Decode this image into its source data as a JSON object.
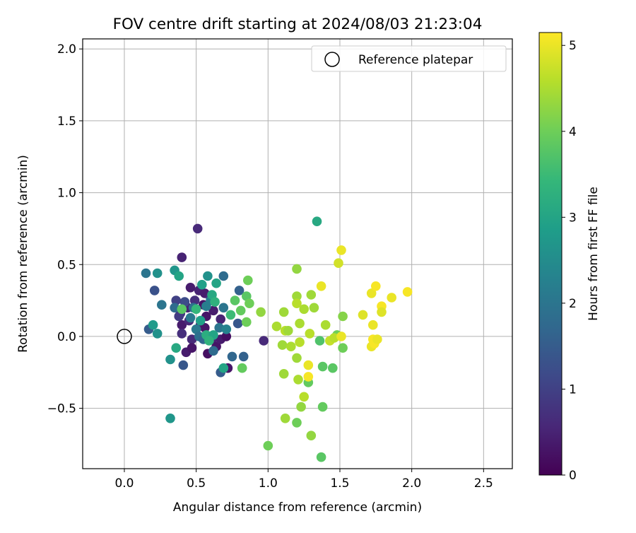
{
  "chart_data": {
    "type": "scatter",
    "title": "FOV centre drift starting at 2024/08/03 21:23:04",
    "xlabel": "Angular distance from reference (arcmin)",
    "ylabel": "Rotation from reference (arcmin)",
    "xlim": [
      -0.29,
      2.7
    ],
    "ylim": [
      -0.92,
      2.07
    ],
    "xticks": [
      0.0,
      0.5,
      1.0,
      1.5,
      2.0,
      2.5
    ],
    "xtick_labels": [
      "0.0",
      "0.5",
      "1.0",
      "1.5",
      "2.0",
      "2.5"
    ],
    "yticks": [
      -0.5,
      0.0,
      0.5,
      1.0,
      1.5,
      2.0
    ],
    "ytick_labels": [
      "−0.5",
      "0.0",
      "0.5",
      "1.0",
      "1.5",
      "2.0"
    ],
    "grid": true,
    "legend": {
      "placement": "top-right",
      "entries": [
        {
          "label": "Reference platepar",
          "marker": "open-circle"
        }
      ]
    },
    "reference_point": {
      "x": 0.0,
      "y": 0.0
    },
    "colorbar": {
      "label": "Hours from first FF file",
      "colormap": "viridis",
      "range": [
        0,
        5.15
      ],
      "ticks": [
        0,
        1,
        2,
        3,
        4,
        5
      ],
      "tick_labels": [
        "0",
        "1",
        "2",
        "3",
        "4",
        "5"
      ]
    },
    "colormap_stops": [
      "#440154",
      "#482878",
      "#3e4989",
      "#31688e",
      "#26828e",
      "#1f9e89",
      "#35b779",
      "#6ece58",
      "#b5de2b",
      "#fde725"
    ],
    "points": [
      [
        0.51,
        0.75,
        0.6
      ],
      [
        0.4,
        0.55,
        0.5
      ],
      [
        0.46,
        0.34,
        0.4
      ],
      [
        0.52,
        0.32,
        0.5
      ],
      [
        0.56,
        0.3,
        0.4
      ],
      [
        0.6,
        0.27,
        0.6
      ],
      [
        0.44,
        0.2,
        0.5
      ],
      [
        0.49,
        0.25,
        0.7
      ],
      [
        0.55,
        0.22,
        0.3
      ],
      [
        0.57,
        0.14,
        0.3
      ],
      [
        0.4,
        0.08,
        0.4
      ],
      [
        0.45,
        0.11,
        0.6
      ],
      [
        0.39,
        0.16,
        0.8
      ],
      [
        0.53,
        0.08,
        0.5
      ],
      [
        0.56,
        0.06,
        0.3
      ],
      [
        0.47,
        -0.02,
        0.6
      ],
      [
        0.61,
        -0.02,
        0.5
      ],
      [
        0.43,
        -0.11,
        0.4
      ],
      [
        0.47,
        -0.08,
        0.3
      ],
      [
        0.58,
        -0.12,
        0.2
      ],
      [
        0.64,
        -0.07,
        0.3
      ],
      [
        0.67,
        -0.02,
        0.4
      ],
      [
        0.71,
        0.0,
        0.2
      ],
      [
        0.72,
        -0.22,
        0.3
      ],
      [
        0.97,
        -0.03,
        0.6
      ],
      [
        0.4,
        0.02,
        0.7
      ],
      [
        0.62,
        0.18,
        0.4
      ],
      [
        0.67,
        0.12,
        0.5
      ],
      [
        0.42,
        0.24,
        1.2
      ],
      [
        0.36,
        0.25,
        1.0
      ],
      [
        0.38,
        0.14,
        0.9
      ],
      [
        0.17,
        0.05,
        1.5
      ],
      [
        0.21,
        0.32,
        1.3
      ],
      [
        0.41,
        -0.2,
        1.4
      ],
      [
        0.67,
        -0.25,
        1.5
      ],
      [
        0.75,
        -0.14,
        1.7
      ],
      [
        0.83,
        -0.14,
        1.6
      ],
      [
        0.79,
        0.09,
        1.4
      ],
      [
        0.8,
        0.32,
        1.6
      ],
      [
        0.69,
        0.42,
        1.8
      ],
      [
        0.15,
        0.44,
        2.0
      ],
      [
        0.26,
        0.22,
        2.0
      ],
      [
        0.35,
        0.2,
        1.8
      ],
      [
        0.48,
        0.2,
        1.9
      ],
      [
        0.5,
        0.05,
        2.1
      ],
      [
        0.52,
        0.0,
        1.9
      ],
      [
        0.55,
        -0.02,
        1.7
      ],
      [
        0.62,
        -0.1,
        1.8
      ],
      [
        0.66,
        0.06,
        2.0
      ],
      [
        0.71,
        0.05,
        2.3
      ],
      [
        0.6,
        0.25,
        2.2
      ],
      [
        0.69,
        0.2,
        2.0
      ],
      [
        0.46,
        0.13,
        2.1
      ],
      [
        0.57,
        0.21,
        2.2
      ],
      [
        0.23,
        0.44,
        2.6
      ],
      [
        0.35,
        0.46,
        2.7
      ],
      [
        0.38,
        0.42,
        3.0
      ],
      [
        0.2,
        0.08,
        2.8
      ],
      [
        0.23,
        0.02,
        2.6
      ],
      [
        0.32,
        -0.16,
        2.6
      ],
      [
        0.36,
        -0.08,
        3.1
      ],
      [
        0.32,
        -0.57,
        2.7
      ],
      [
        0.58,
        0.42,
        2.6
      ],
      [
        0.54,
        0.36,
        2.9
      ],
      [
        0.64,
        0.37,
        3.0
      ],
      [
        0.61,
        0.29,
        3.1
      ],
      [
        0.63,
        0.24,
        3.3
      ],
      [
        0.53,
        0.11,
        2.9
      ],
      [
        0.57,
        0.01,
        3.2
      ],
      [
        0.62,
        0.01,
        3.0
      ],
      [
        0.59,
        -0.03,
        3.3
      ],
      [
        0.69,
        -0.22,
        3.0
      ],
      [
        0.74,
        0.15,
        3.5
      ],
      [
        0.5,
        0.19,
        3.4
      ],
      [
        1.34,
        0.8,
        3.1
      ],
      [
        0.4,
        0.19,
        3.8
      ],
      [
        0.77,
        0.25,
        3.8
      ],
      [
        0.81,
        0.18,
        3.9
      ],
      [
        0.85,
        0.28,
        3.8
      ],
      [
        0.87,
        0.23,
        4.0
      ],
      [
        0.86,
        0.39,
        4.0
      ],
      [
        0.85,
        0.1,
        4.0
      ],
      [
        0.82,
        -0.22,
        3.9
      ],
      [
        1.0,
        -0.76,
        4.0
      ],
      [
        1.2,
        -0.6,
        4.0
      ],
      [
        1.36,
        -0.03,
        3.7
      ],
      [
        1.38,
        -0.21,
        3.8
      ],
      [
        1.45,
        -0.22,
        3.8
      ],
      [
        1.38,
        -0.49,
        3.9
      ],
      [
        1.37,
        -0.84,
        3.8
      ],
      [
        1.28,
        -0.32,
        3.9
      ],
      [
        1.52,
        -0.08,
        4.0
      ],
      [
        1.52,
        0.14,
        4.2
      ],
      [
        1.48,
        0.01,
        4.0
      ],
      [
        1.3,
        -0.69,
        4.3
      ],
      [
        0.95,
        0.17,
        4.3
      ],
      [
        1.2,
        0.47,
        4.3
      ],
      [
        1.2,
        0.28,
        4.4
      ],
      [
        1.3,
        0.29,
        4.4
      ],
      [
        1.25,
        0.19,
        4.5
      ],
      [
        1.32,
        0.2,
        4.4
      ],
      [
        1.2,
        0.23,
        4.6
      ],
      [
        1.11,
        0.17,
        4.4
      ],
      [
        1.06,
        0.07,
        4.5
      ],
      [
        1.12,
        0.04,
        4.6
      ],
      [
        1.14,
        0.04,
        4.4
      ],
      [
        1.22,
        0.09,
        4.5
      ],
      [
        1.29,
        0.02,
        4.6
      ],
      [
        1.4,
        0.08,
        4.5
      ],
      [
        1.1,
        -0.06,
        4.4
      ],
      [
        1.16,
        -0.07,
        4.5
      ],
      [
        1.22,
        -0.04,
        4.6
      ],
      [
        1.2,
        -0.15,
        4.4
      ],
      [
        1.11,
        -0.26,
        4.4
      ],
      [
        1.21,
        -0.3,
        4.5
      ],
      [
        1.25,
        -0.42,
        4.6
      ],
      [
        1.23,
        -0.49,
        4.3
      ],
      [
        1.12,
        -0.57,
        4.4
      ],
      [
        1.43,
        -0.03,
        4.7
      ],
      [
        1.46,
        -0.01,
        4.6
      ],
      [
        1.49,
        0.51,
        4.8
      ],
      [
        1.51,
        0.6,
        5.0
      ],
      [
        1.37,
        0.35,
        5.0
      ],
      [
        1.28,
        -0.2,
        5.0
      ],
      [
        1.28,
        -0.28,
        5.1
      ],
      [
        1.51,
        0.0,
        5.0
      ],
      [
        1.66,
        0.15,
        4.9
      ],
      [
        1.72,
        0.3,
        5.0
      ],
      [
        1.75,
        0.35,
        5.1
      ],
      [
        1.73,
        0.08,
        5.0
      ],
      [
        1.73,
        -0.02,
        5.1
      ],
      [
        1.72,
        -0.07,
        5.0
      ],
      [
        1.74,
        -0.05,
        5.1
      ],
      [
        1.76,
        -0.02,
        5.0
      ],
      [
        1.79,
        0.21,
        5.1
      ],
      [
        1.79,
        0.17,
        4.9
      ],
      [
        1.86,
        0.27,
        5.0
      ],
      [
        1.97,
        0.31,
        5.1
      ]
    ]
  }
}
